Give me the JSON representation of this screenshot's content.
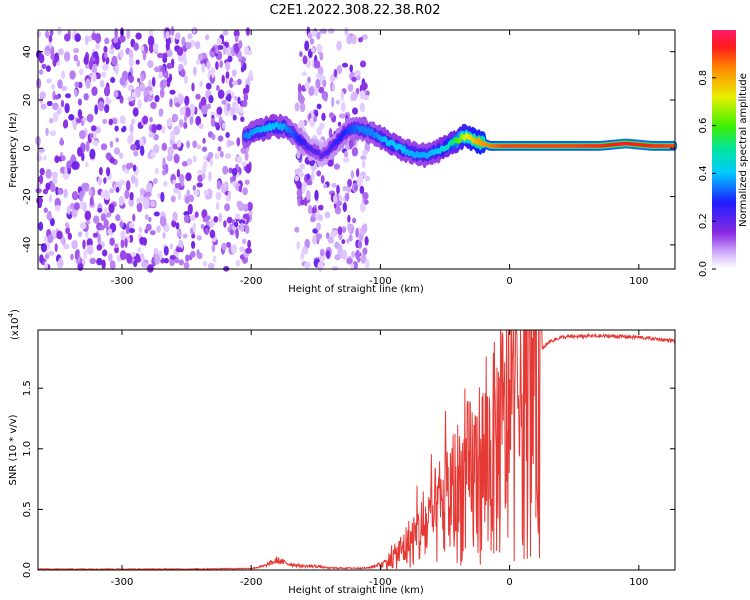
{
  "figure": {
    "title": "C2E1.2022.308.22.38.R02"
  },
  "chart_data": [
    {
      "type": "heatmap",
      "xlabel": "Height of straight line (km)",
      "ylabel": "Frequency (Hz)",
      "xlim": [
        -365,
        128
      ],
      "ylim": [
        -50,
        49
      ],
      "x_ticks": [
        "-300",
        "-200",
        "-100",
        "0",
        "100"
      ],
      "y_ticks": [
        "-40",
        "-20",
        "0",
        "20",
        "40"
      ],
      "colorbar": {
        "label": "Normalized spectral amplitude",
        "range": [
          0.0,
          1.0
        ],
        "ticks": [
          "0.0",
          "0.2",
          "0.4",
          "0.6",
          "0.8"
        ],
        "colormap": "rainbow"
      },
      "noise_regions": [
        [
          -365,
          -200
        ],
        [
          -165,
          -110
        ]
      ],
      "signal_track": {
        "x": [
          -205,
          -195,
          -185,
          -175,
          -165,
          -155,
          -145,
          -135,
          -125,
          -115,
          -105,
          -95,
          -85,
          -75,
          -65,
          -55,
          -45,
          -35,
          -25,
          -15,
          -5,
          5,
          15,
          30,
          50,
          70,
          90,
          110,
          128
        ],
        "frequency": [
          5,
          7,
          9,
          9,
          5,
          0,
          -3,
          2,
          8,
          8,
          6,
          3,
          0,
          -2,
          -3,
          -1,
          2,
          5,
          3,
          1,
          1,
          1,
          1,
          1,
          1,
          1,
          2,
          1,
          1
        ],
        "amplitude": [
          0.35,
          0.38,
          0.4,
          0.38,
          0.3,
          0.22,
          0.2,
          0.25,
          0.3,
          0.35,
          0.35,
          0.4,
          0.4,
          0.38,
          0.38,
          0.4,
          0.5,
          0.7,
          0.8,
          0.85,
          0.9,
          0.9,
          0.9,
          0.9,
          0.9,
          0.92,
          0.95,
          0.92,
          0.9
        ]
      }
    },
    {
      "type": "line",
      "xlabel": "Height of straight line (km)",
      "ylabel": "SNR (10 * v/v)",
      "multiplier_label": "(x10",
      "multiplier_exp": "4",
      "multiplier_close": ")",
      "xlim": [
        -365,
        128
      ],
      "ylim": [
        0,
        1.98
      ],
      "x_ticks": [
        "-300",
        "-200",
        "-100",
        "0",
        "100"
      ],
      "y_ticks": [
        "0.0",
        "0.5",
        "1.0",
        "1.5"
      ],
      "series": [
        {
          "color": "#e53935",
          "x": [
            -365,
            -300,
            -250,
            -200,
            -190,
            -180,
            -170,
            -160,
            -150,
            -140,
            -130,
            -120,
            -110,
            -100,
            -90,
            -80,
            -70,
            -60,
            -50,
            -40,
            -30,
            -20,
            -10,
            0,
            10,
            20,
            30,
            40,
            60,
            80,
            100,
            128
          ],
          "y": [
            0.005,
            0.005,
            0.005,
            0.008,
            0.02,
            0.05,
            0.03,
            0.02,
            0.02,
            0.01,
            0.01,
            0.01,
            0.01,
            0.03,
            0.1,
            0.2,
            0.3,
            0.4,
            0.55,
            0.65,
            0.75,
            0.85,
            1.0,
            1.2,
            1.5,
            1.75,
            1.88,
            1.92,
            1.93,
            1.93,
            1.92,
            1.89
          ]
        }
      ]
    }
  ]
}
